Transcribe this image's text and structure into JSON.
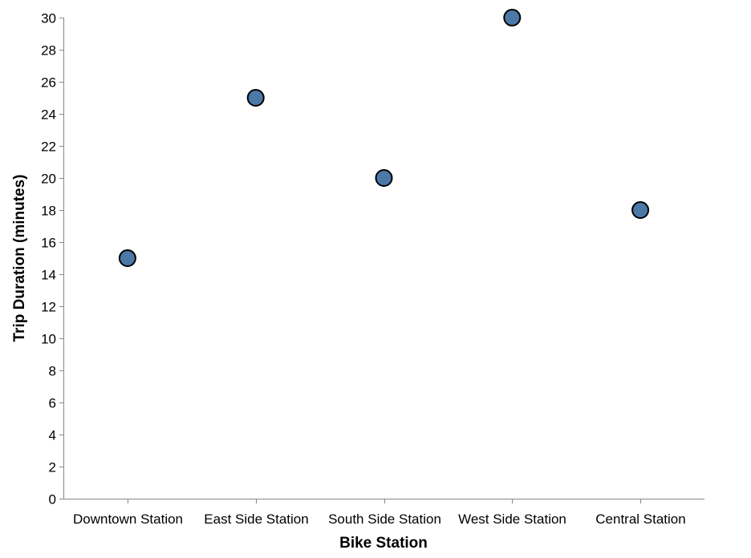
{
  "chart_data": {
    "type": "scatter",
    "title": "",
    "xlabel": "Bike Station",
    "ylabel": "Trip Duration (minutes)",
    "categories": [
      "Downtown Station",
      "East Side Station",
      "South Side Station",
      "West Side Station",
      "Central Station"
    ],
    "values": [
      15,
      25,
      20,
      30,
      18
    ],
    "ylim": [
      0,
      30
    ],
    "yticks": [
      0,
      2,
      4,
      6,
      8,
      10,
      12,
      14,
      16,
      18,
      20,
      22,
      24,
      26,
      28,
      30
    ],
    "grid": false,
    "legend": "none",
    "point_color": "#4c78a8",
    "point_stroke": "#000000",
    "axis_color": "#888888"
  }
}
